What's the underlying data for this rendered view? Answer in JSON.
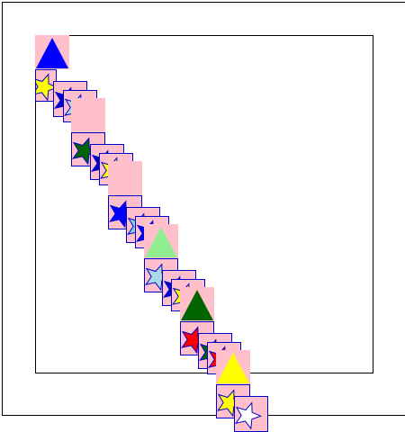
{
  "colors": {
    "background": "#ffffff",
    "frame": "#000000",
    "tile_pink": "#ffc0cb",
    "tile_outline": "#0000cc"
  },
  "pieces": [
    {
      "shape": "triangle",
      "color": "#0000ff",
      "tile": "pink"
    },
    {
      "shape": "star",
      "color": "#ffff00",
      "tile": "outlined"
    },
    {
      "shape": "star",
      "color": "#0000cc",
      "tile": "outlined"
    },
    {
      "shape": "star",
      "color": "#add8e6",
      "tile": "outlined"
    },
    {
      "shape": "blank",
      "color": "#ffc0cb",
      "tile": "pink"
    },
    {
      "shape": "star",
      "color": "#006400",
      "tile": "outlined"
    },
    {
      "shape": "star",
      "color": "#0000cc",
      "tile": "outlined"
    },
    {
      "shape": "star",
      "color": "#ffff00",
      "tile": "outlined"
    },
    {
      "shape": "blank",
      "color": "#ffc0cb",
      "tile": "pink"
    },
    {
      "shape": "star",
      "color": "#0000ff",
      "tile": "outlined"
    },
    {
      "shape": "star",
      "color": "#87ceeb",
      "tile": "outlined"
    },
    {
      "shape": "star",
      "color": "#0000ff",
      "tile": "outlined"
    },
    {
      "shape": "triangle",
      "color": "#90ee90",
      "tile": "pink"
    },
    {
      "shape": "star",
      "color": "#add8e6",
      "tile": "outlined"
    },
    {
      "shape": "star",
      "color": "#0000cc",
      "tile": "outlined"
    },
    {
      "shape": "star",
      "color": "#ffff00",
      "tile": "outlined"
    },
    {
      "shape": "triangle",
      "color": "#006400",
      "tile": "pink"
    },
    {
      "shape": "star",
      "color": "#ff0000",
      "tile": "outlined"
    },
    {
      "shape": "star",
      "color": "#006400",
      "tile": "outlined"
    },
    {
      "shape": "star",
      "color": "#ff0000",
      "tile": "outlined"
    },
    {
      "shape": "triangle",
      "color": "#ffff00",
      "tile": "pink"
    },
    {
      "shape": "star",
      "color": "#ffff00",
      "tile": "outlined"
    },
    {
      "shape": "star",
      "color": "#ffffff",
      "tile": "outlined"
    }
  ]
}
